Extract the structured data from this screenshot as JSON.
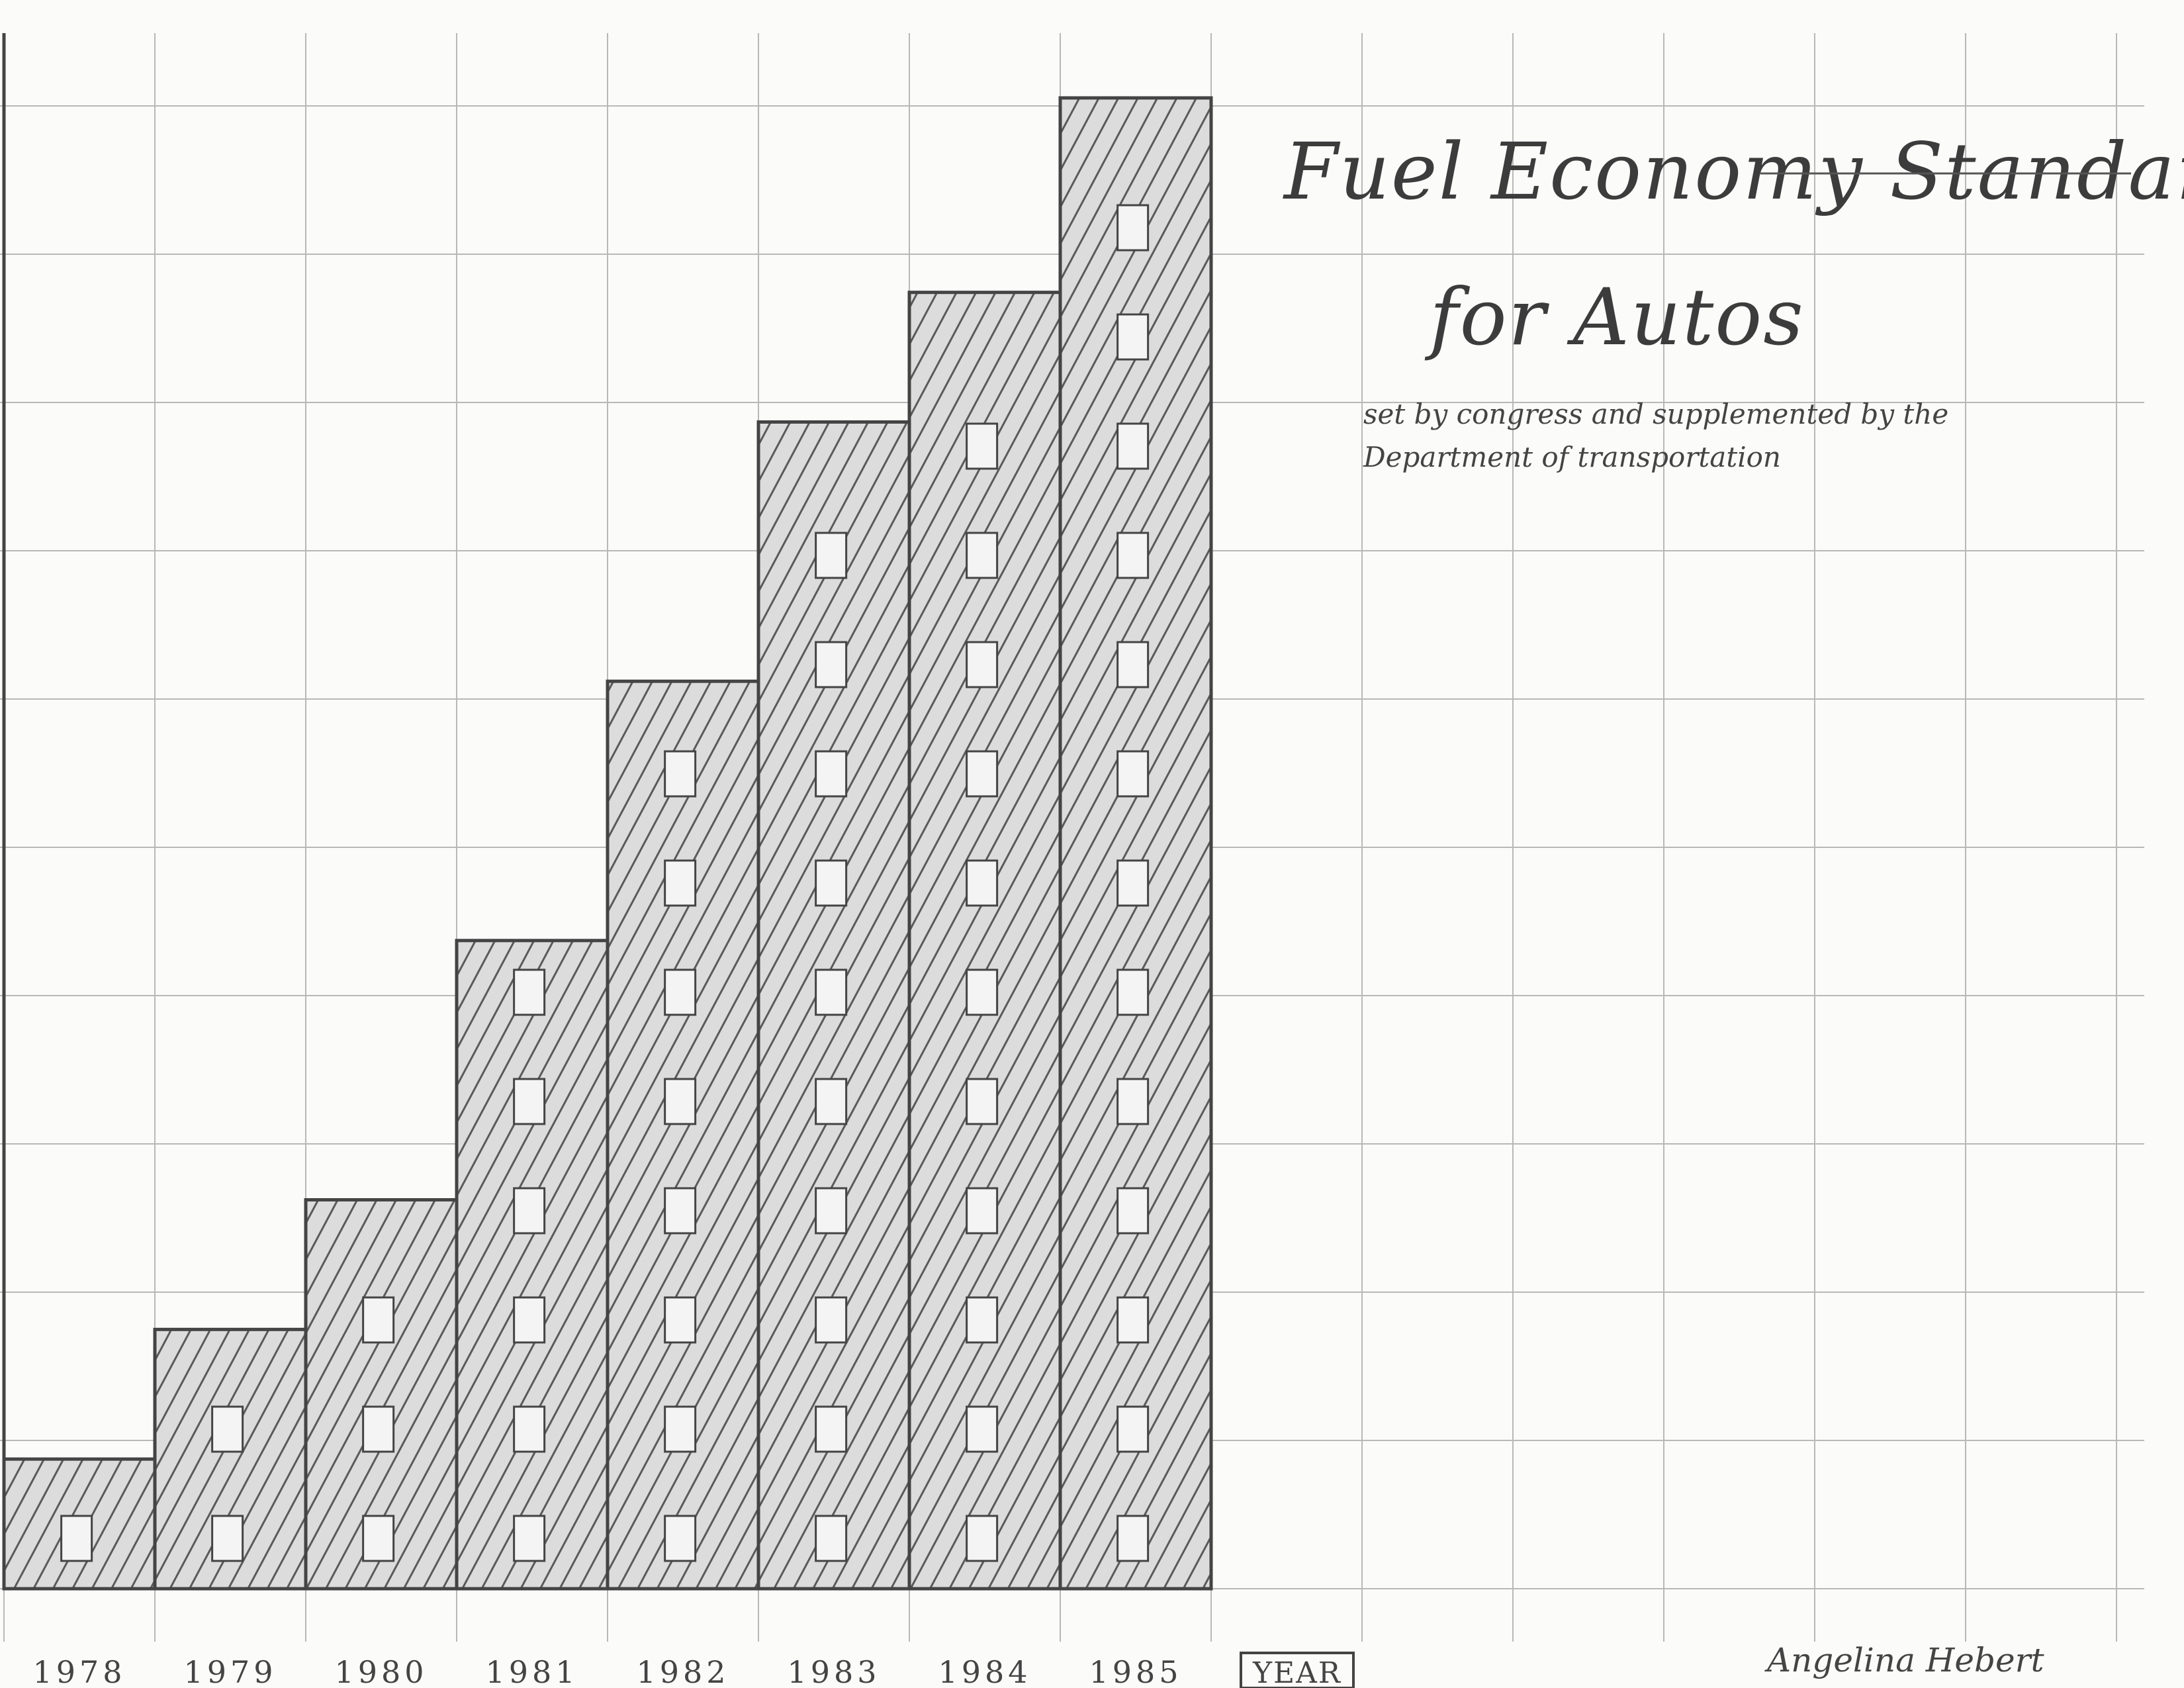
{
  "chart_data": {
    "type": "bar",
    "title_lines": [
      "Fuel Economy Standards",
      "for Autos"
    ],
    "subtitle_lines": [
      "set by congress and supplemented by the",
      "Department of transportation"
    ],
    "categories": [
      "1978",
      "1979",
      "1980",
      "1981",
      "1982",
      "1983",
      "1984",
      "1985"
    ],
    "values": [
      1,
      2,
      3,
      5,
      7,
      9,
      10,
      11.5
    ],
    "xlabel": "YEAR",
    "ylabel": "",
    "ylim": [
      0,
      12
    ],
    "grid": true,
    "legend": "none",
    "colors": {
      "bar_fill": "#d9d9d9",
      "hatch": "#555555",
      "outline": "#444444",
      "window": "#f4f4f4",
      "grid": "#b8b8b8"
    }
  },
  "signature": "Angelina Hebert"
}
